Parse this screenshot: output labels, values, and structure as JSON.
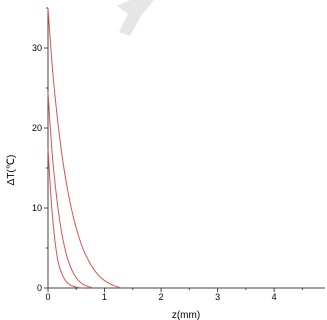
{
  "chart_data": {
    "type": "line",
    "xlabel": "z(mm)",
    "ylabel": "ΔT(℃)",
    "xlim": [
      0,
      4.9
    ],
    "ylim": [
      0,
      35
    ],
    "x_ticks": [
      0,
      1,
      2,
      3,
      4
    ],
    "y_ticks": [
      0,
      10,
      20,
      30
    ],
    "grid": false,
    "line_color": "#d9534f",
    "series": [
      {
        "x": [
          0,
          0.05,
          0.1,
          0.15,
          0.2,
          0.3,
          0.4,
          0.5,
          0.6
        ],
        "y": [
          17.5,
          11.5,
          7.2,
          4.3,
          2.5,
          0.9,
          0.3,
          0.1,
          0
        ]
      },
      {
        "x": [
          0,
          0.05,
          0.1,
          0.2,
          0.3,
          0.4,
          0.5,
          0.6,
          0.7,
          0.8
        ],
        "y": [
          24.5,
          19.0,
          14.5,
          8.5,
          4.7,
          2.5,
          1.2,
          0.5,
          0.2,
          0
        ]
      },
      {
        "x": [
          0,
          0.05,
          0.1,
          0.2,
          0.3,
          0.4,
          0.5,
          0.6,
          0.7,
          0.8,
          0.9,
          1.0,
          1.1,
          1.2,
          1.3
        ],
        "y": [
          35,
          30.0,
          25.5,
          19.0,
          14.0,
          10.3,
          7.4,
          5.2,
          3.6,
          2.4,
          1.5,
          0.9,
          0.5,
          0.2,
          0
        ]
      }
    ]
  }
}
